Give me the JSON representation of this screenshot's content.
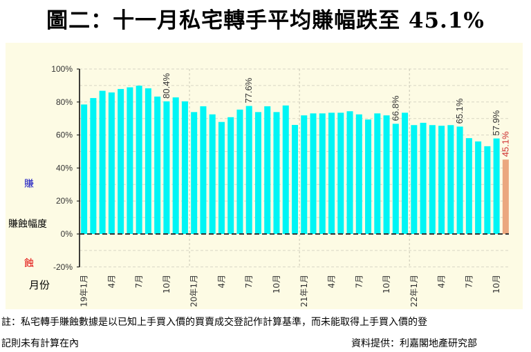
{
  "title": "圖二：十一月私宅轉手平均賺幅跌至 45.1%",
  "side_labels": {
    "gain": "賺",
    "axis": "賺蝕幅度",
    "loss": "蝕",
    "month": "月份"
  },
  "colors": {
    "bar": "#00f5f5",
    "highlight_bar": "#eba77e",
    "gain": "#1010c0",
    "loss": "#e00000",
    "highlight_label": "#d03030",
    "panel": "#fdfbe4"
  },
  "note_line1": "註：私宅轉手賺蝕數據是以已知上手買入價的買賣成交登記作計算基準，而未能取得上手買入價的登",
  "note_line2": "記則未有計算在內",
  "source": "資料提供：利嘉閣地產研究部",
  "chart_data": {
    "type": "bar",
    "ylim": [
      -20,
      100
    ],
    "yticks": [
      "100%",
      "80%",
      "60%",
      "40%",
      "20%",
      "0%",
      "-20%"
    ],
    "ytick_values": [
      100,
      80,
      60,
      40,
      20,
      0,
      -20
    ],
    "grid": true,
    "categories": [
      "19年1月",
      "2月",
      "3月",
      "4月",
      "5月",
      "6月",
      "7月",
      "8月",
      "9月",
      "10月",
      "11月",
      "12月",
      "20年1月",
      "2月",
      "3月",
      "4月",
      "5月",
      "6月",
      "7月",
      "8月",
      "9月",
      "10月",
      "11月",
      "12月",
      "21年1月",
      "2月",
      "3月",
      "4月",
      "5月",
      "6月",
      "7月",
      "8月",
      "9月",
      "10月",
      "11月",
      "12月",
      "22年1月",
      "2月",
      "3月",
      "4月",
      "5月",
      "6月",
      "7月",
      "8月",
      "9月",
      "10月",
      "11月"
    ],
    "xtick_labels": [
      "19年1月",
      "4月",
      "7月",
      "10月",
      "20年1月",
      "4月",
      "7月",
      "10月",
      "21年1月",
      "4月",
      "7月",
      "10月",
      "22年1月",
      "4月",
      "7月",
      "10月"
    ],
    "xtick_indices": [
      0,
      3,
      6,
      9,
      12,
      15,
      18,
      21,
      24,
      27,
      30,
      33,
      36,
      39,
      42,
      45
    ],
    "values": [
      78.5,
      82.4,
      86.8,
      85.8,
      87.9,
      88.9,
      89.9,
      88.3,
      83.3,
      80.4,
      82.8,
      80.4,
      73.9,
      77.4,
      72.5,
      67.9,
      70.8,
      75.4,
      77.6,
      73.9,
      77.4,
      73.9,
      77.9,
      66.1,
      71.9,
      73.1,
      73.1,
      73.5,
      73.5,
      74.4,
      72.5,
      69.4,
      73.1,
      71.9,
      66.8,
      73.5,
      66.0,
      67.4,
      66.0,
      65.6,
      66.0,
      65.1,
      58.1,
      56.1,
      53.2,
      57.9,
      45.1
    ],
    "highlight_index": 46,
    "data_labels": [
      {
        "index": 9,
        "text": "80.4%"
      },
      {
        "index": 18,
        "text": "77.6%"
      },
      {
        "index": 34,
        "text": "66.8%"
      },
      {
        "index": 41,
        "text": "65.1%"
      },
      {
        "index": 45,
        "text": "57.9%"
      },
      {
        "index": 46,
        "text": "45.1%"
      }
    ]
  }
}
